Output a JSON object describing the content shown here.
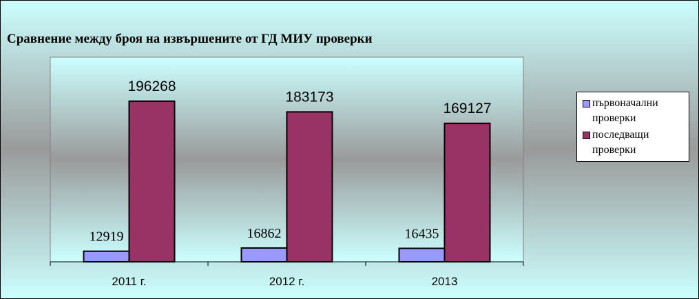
{
  "chart_data": {
    "type": "bar",
    "title": "Сравнение между броя на извършените от ГД МИУ проверки",
    "categories": [
      "2011 г.",
      "2012 г.",
      "2013"
    ],
    "series": [
      {
        "name": "първоначални проверки",
        "color": "#9999ff",
        "values": [
          12919,
          16862,
          16435
        ]
      },
      {
        "name": "последващи проверки",
        "color": "#993366",
        "values": [
          196268,
          183173,
          169127
        ]
      }
    ],
    "ylim": [
      0,
      250000
    ],
    "legend": "right"
  }
}
